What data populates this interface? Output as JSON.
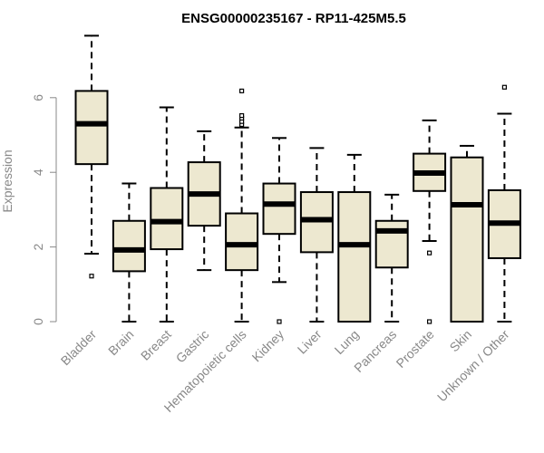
{
  "chart_data": {
    "type": "box",
    "title": "ENSG00000235167 - RP11-425M5.5",
    "xlabel": "",
    "ylabel": "Expression",
    "ylim": [
      0,
      7.7
    ],
    "yticks": [
      0,
      2,
      4,
      6
    ],
    "grid": false,
    "colors": {
      "box_fill": "#ede8d0",
      "stroke": "#000000",
      "axis_text": "#888888"
    },
    "categories": [
      "Bladder",
      "Brain",
      "Breast",
      "Gastric",
      "Hematopoietic cells",
      "Kidney",
      "Liver",
      "Lung",
      "Pancreas",
      "Prostate",
      "Skin",
      "Unknown / Other"
    ],
    "boxes": [
      {
        "min": 1.82,
        "q1": 4.22,
        "median": 5.3,
        "q3": 6.18,
        "max": 7.66,
        "outliers": [
          1.22
        ]
      },
      {
        "min": 0.0,
        "q1": 1.35,
        "median": 1.92,
        "q3": 2.7,
        "max": 3.7,
        "outliers": []
      },
      {
        "min": 0.0,
        "q1": 1.94,
        "median": 2.68,
        "q3": 3.58,
        "max": 5.74,
        "outliers": []
      },
      {
        "min": 1.38,
        "q1": 2.57,
        "median": 3.42,
        "q3": 4.27,
        "max": 5.1,
        "outliers": []
      },
      {
        "min": 0.0,
        "q1": 1.38,
        "median": 2.06,
        "q3": 2.9,
        "max": 5.2,
        "outliers": [
          5.28,
          5.36,
          5.45,
          5.52,
          6.18
        ]
      },
      {
        "min": 1.06,
        "q1": 2.35,
        "median": 3.15,
        "q3": 3.7,
        "max": 4.92,
        "outliers": [
          0.0
        ]
      },
      {
        "min": 0.0,
        "q1": 1.86,
        "median": 2.73,
        "q3": 3.47,
        "max": 4.65,
        "outliers": []
      },
      {
        "min": 0.0,
        "q1": 0.0,
        "median": 2.06,
        "q3": 3.47,
        "max": 4.47,
        "outliers": []
      },
      {
        "min": 0.0,
        "q1": 1.45,
        "median": 2.43,
        "q3": 2.7,
        "max": 3.4,
        "outliers": []
      },
      {
        "min": 2.16,
        "q1": 3.5,
        "median": 3.98,
        "q3": 4.5,
        "max": 5.39,
        "outliers": [
          1.84,
          0.0
        ]
      },
      {
        "min": 0.0,
        "q1": 0.0,
        "median": 3.13,
        "q3": 4.4,
        "max": 4.71,
        "outliers": []
      },
      {
        "min": 0.0,
        "q1": 1.7,
        "median": 2.64,
        "q3": 3.52,
        "max": 5.57,
        "outliers": [
          6.28
        ]
      }
    ]
  }
}
